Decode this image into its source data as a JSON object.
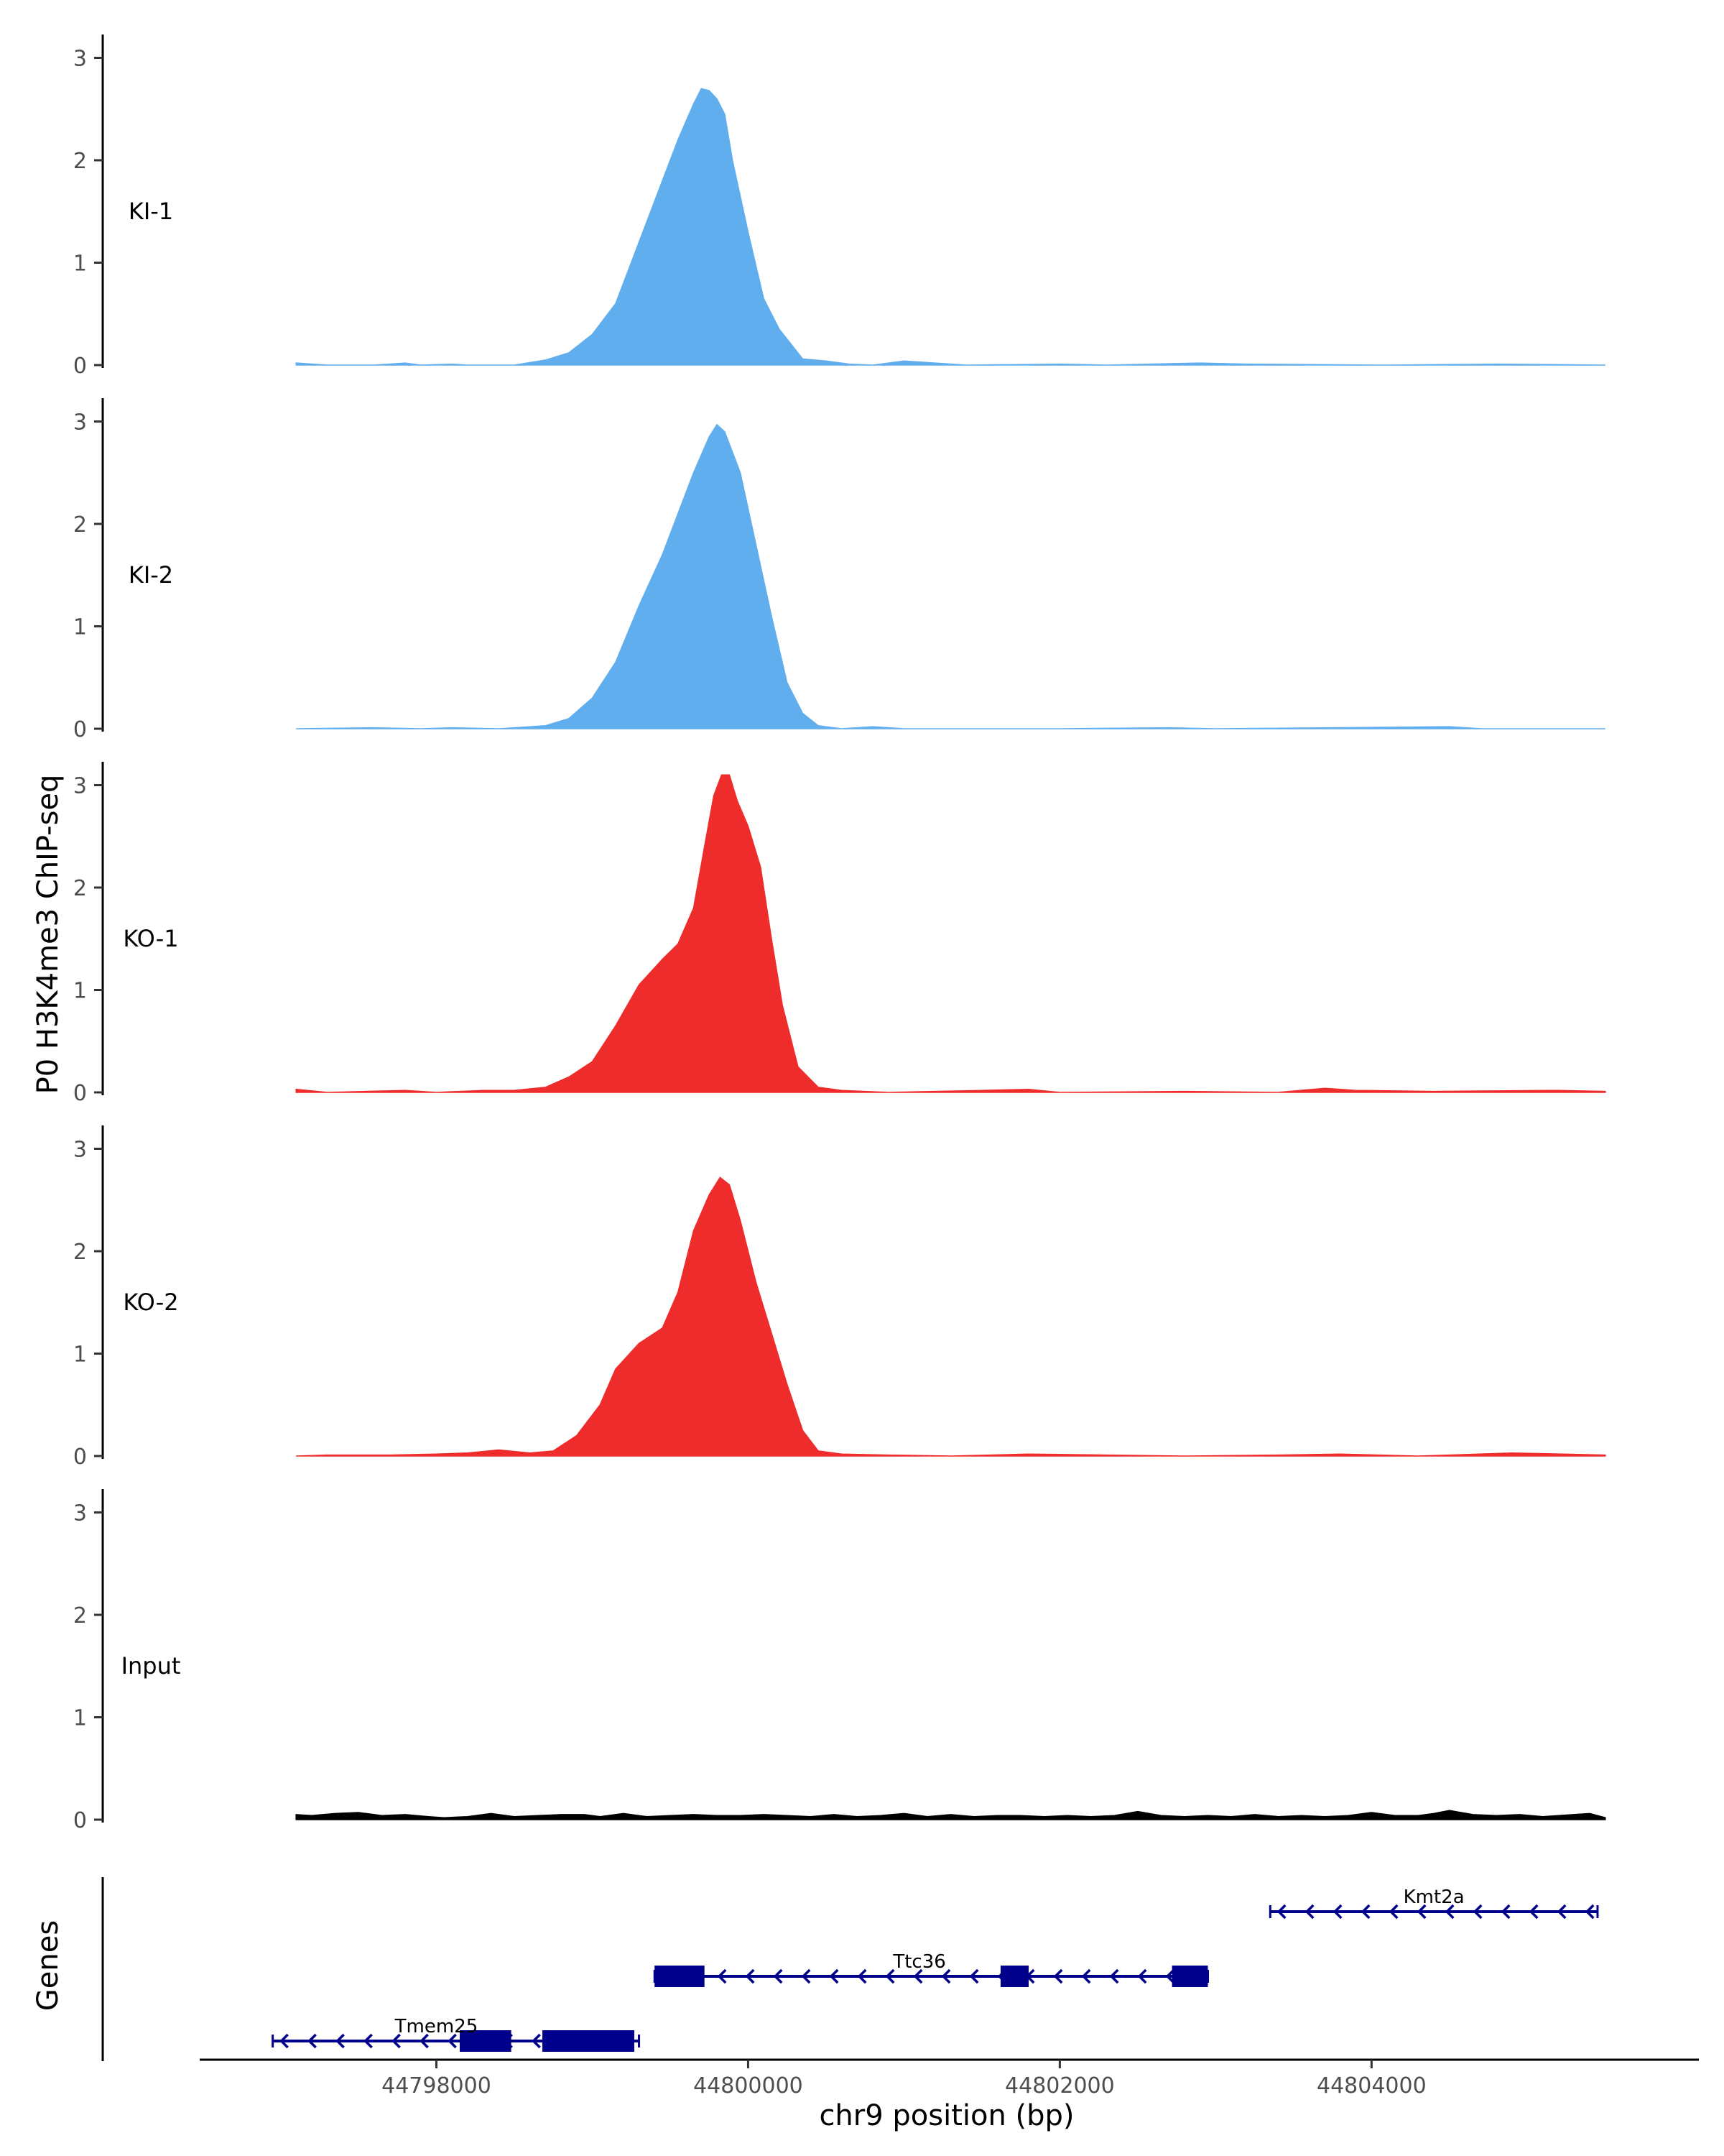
{
  "chart_data": {
    "type": "area",
    "ylabel": "P0 H3K4me3 ChIP-seq",
    "xlabel": "chr9 position (bp)",
    "ylim": [
      0,
      3.2
    ],
    "yticks": [
      0,
      1,
      2,
      3
    ],
    "xlim": [
      44796500,
      44806100
    ],
    "xticks": [
      44798000,
      44800000,
      44802000,
      44804000
    ],
    "grid": false,
    "x_start": 44797100,
    "x_end": 44805500,
    "tracks": [
      {
        "label": "KI-1",
        "color": "#61AEEE",
        "profile": [
          [
            44797100,
            0.02
          ],
          [
            44797300,
            0.0
          ],
          [
            44797500,
            0.0
          ],
          [
            44797600,
            0.0
          ],
          [
            44797800,
            0.02
          ],
          [
            44797900,
            0.0
          ],
          [
            44798100,
            0.01
          ],
          [
            44798200,
            0.0
          ],
          [
            44798500,
            0.0
          ],
          [
            44798700,
            0.05
          ],
          [
            44798850,
            0.12
          ],
          [
            44799000,
            0.3
          ],
          [
            44799150,
            0.6
          ],
          [
            44799250,
            1.0
          ],
          [
            44799400,
            1.6
          ],
          [
            44799550,
            2.2
          ],
          [
            44799650,
            2.55
          ],
          [
            44799700,
            2.7
          ],
          [
            44799750,
            2.68
          ],
          [
            44799800,
            2.6
          ],
          [
            44799850,
            2.45
          ],
          [
            44799900,
            2.0
          ],
          [
            44800000,
            1.3
          ],
          [
            44800100,
            0.65
          ],
          [
            44800200,
            0.35
          ],
          [
            44800350,
            0.06
          ],
          [
            44800500,
            0.04
          ],
          [
            44800650,
            0.01
          ],
          [
            44800800,
            0.0
          ],
          [
            44801000,
            0.04
          ],
          [
            44801200,
            0.02
          ],
          [
            44801400,
            0.0
          ],
          [
            44802000,
            0.01
          ],
          [
            44802300,
            0.0
          ],
          [
            44802900,
            0.02
          ],
          [
            44803200,
            0.01
          ],
          [
            44804100,
            0.0
          ],
          [
            44804800,
            0.01
          ],
          [
            44805500,
            0.0
          ]
        ]
      },
      {
        "label": "KI-2",
        "color": "#61AEEE",
        "profile": [
          [
            44797100,
            0.0
          ],
          [
            44797600,
            0.01
          ],
          [
            44797900,
            0.0
          ],
          [
            44798100,
            0.01
          ],
          [
            44798400,
            0.0
          ],
          [
            44798700,
            0.03
          ],
          [
            44798850,
            0.1
          ],
          [
            44799000,
            0.3
          ],
          [
            44799150,
            0.65
          ],
          [
            44799300,
            1.2
          ],
          [
            44799450,
            1.7
          ],
          [
            44799550,
            2.1
          ],
          [
            44799650,
            2.5
          ],
          [
            44799750,
            2.85
          ],
          [
            44799800,
            2.97
          ],
          [
            44799850,
            2.9
          ],
          [
            44799950,
            2.5
          ],
          [
            44800050,
            1.8
          ],
          [
            44800150,
            1.1
          ],
          [
            44800250,
            0.45
          ],
          [
            44800350,
            0.15
          ],
          [
            44800450,
            0.03
          ],
          [
            44800600,
            0.0
          ],
          [
            44800800,
            0.02
          ],
          [
            44801000,
            0.0
          ],
          [
            44801400,
            0.0
          ],
          [
            44802000,
            0.0
          ],
          [
            44802700,
            0.01
          ],
          [
            44803000,
            0.0
          ],
          [
            44804500,
            0.02
          ],
          [
            44804700,
            0.0
          ],
          [
            44805500,
            0.0
          ]
        ]
      },
      {
        "label": "KO-1",
        "color": "#EE2C2C",
        "profile": [
          [
            44797100,
            0.03
          ],
          [
            44797300,
            0.0
          ],
          [
            44797800,
            0.02
          ],
          [
            44798000,
            0.0
          ],
          [
            44798300,
            0.02
          ],
          [
            44798500,
            0.02
          ],
          [
            44798700,
            0.05
          ],
          [
            44798850,
            0.15
          ],
          [
            44799000,
            0.3
          ],
          [
            44799150,
            0.65
          ],
          [
            44799300,
            1.05
          ],
          [
            44799450,
            1.3
          ],
          [
            44799550,
            1.45
          ],
          [
            44799650,
            1.8
          ],
          [
            44799720,
            2.4
          ],
          [
            44799780,
            2.9
          ],
          [
            44799830,
            3.1
          ],
          [
            44799880,
            3.1
          ],
          [
            44799930,
            2.85
          ],
          [
            44800000,
            2.6
          ],
          [
            44800080,
            2.2
          ],
          [
            44800150,
            1.5
          ],
          [
            44800220,
            0.85
          ],
          [
            44800320,
            0.25
          ],
          [
            44800450,
            0.05
          ],
          [
            44800600,
            0.02
          ],
          [
            44800900,
            0.0
          ],
          [
            44801200,
            0.01
          ],
          [
            44801500,
            0.02
          ],
          [
            44801800,
            0.03
          ],
          [
            44802000,
            0.0
          ],
          [
            44802800,
            0.01
          ],
          [
            44803400,
            0.0
          ],
          [
            44803700,
            0.04
          ],
          [
            44803900,
            0.02
          ],
          [
            44804400,
            0.01
          ],
          [
            44805200,
            0.02
          ],
          [
            44805500,
            0.01
          ]
        ]
      },
      {
        "label": "KO-2",
        "color": "#EE2C2C",
        "profile": [
          [
            44797100,
            0.0
          ],
          [
            44797300,
            0.01
          ],
          [
            44797700,
            0.01
          ],
          [
            44798000,
            0.02
          ],
          [
            44798200,
            0.03
          ],
          [
            44798400,
            0.06
          ],
          [
            44798600,
            0.03
          ],
          [
            44798750,
            0.05
          ],
          [
            44798900,
            0.2
          ],
          [
            44799050,
            0.5
          ],
          [
            44799150,
            0.85
          ],
          [
            44799300,
            1.1
          ],
          [
            44799450,
            1.25
          ],
          [
            44799550,
            1.6
          ],
          [
            44799650,
            2.2
          ],
          [
            44799750,
            2.55
          ],
          [
            44799820,
            2.72
          ],
          [
            44799880,
            2.65
          ],
          [
            44799950,
            2.3
          ],
          [
            44800050,
            1.7
          ],
          [
            44800150,
            1.2
          ],
          [
            44800250,
            0.7
          ],
          [
            44800350,
            0.25
          ],
          [
            44800450,
            0.05
          ],
          [
            44800600,
            0.02
          ],
          [
            44800900,
            0.01
          ],
          [
            44801300,
            0.0
          ],
          [
            44801800,
            0.02
          ],
          [
            44802300,
            0.01
          ],
          [
            44802800,
            0.0
          ],
          [
            44803400,
            0.01
          ],
          [
            44803800,
            0.02
          ],
          [
            44804300,
            0.0
          ],
          [
            44804900,
            0.03
          ],
          [
            44805500,
            0.01
          ]
        ]
      },
      {
        "label": "Input",
        "color": "#000000",
        "profile": [
          [
            44797100,
            0.05
          ],
          [
            44797200,
            0.04
          ],
          [
            44797350,
            0.06
          ],
          [
            44797500,
            0.07
          ],
          [
            44797650,
            0.04
          ],
          [
            44797800,
            0.05
          ],
          [
            44797950,
            0.03
          ],
          [
            44798050,
            0.02
          ],
          [
            44798200,
            0.03
          ],
          [
            44798350,
            0.06
          ],
          [
            44798500,
            0.03
          ],
          [
            44798650,
            0.04
          ],
          [
            44798800,
            0.05
          ],
          [
            44798950,
            0.05
          ],
          [
            44799050,
            0.03
          ],
          [
            44799200,
            0.06
          ],
          [
            44799350,
            0.03
          ],
          [
            44799500,
            0.04
          ],
          [
            44799650,
            0.05
          ],
          [
            44799800,
            0.04
          ],
          [
            44799950,
            0.04
          ],
          [
            44800100,
            0.05
          ],
          [
            44800250,
            0.04
          ],
          [
            44800400,
            0.03
          ],
          [
            44800550,
            0.05
          ],
          [
            44800700,
            0.03
          ],
          [
            44800850,
            0.04
          ],
          [
            44801000,
            0.06
          ],
          [
            44801150,
            0.03
          ],
          [
            44801300,
            0.05
          ],
          [
            44801450,
            0.03
          ],
          [
            44801600,
            0.04
          ],
          [
            44801750,
            0.04
          ],
          [
            44801900,
            0.03
          ],
          [
            44802050,
            0.04
          ],
          [
            44802200,
            0.03
          ],
          [
            44802350,
            0.04
          ],
          [
            44802500,
            0.08
          ],
          [
            44802650,
            0.04
          ],
          [
            44802800,
            0.03
          ],
          [
            44802950,
            0.04
          ],
          [
            44803100,
            0.03
          ],
          [
            44803250,
            0.05
          ],
          [
            44803400,
            0.03
          ],
          [
            44803550,
            0.04
          ],
          [
            44803700,
            0.03
          ],
          [
            44803850,
            0.04
          ],
          [
            44804000,
            0.07
          ],
          [
            44804150,
            0.04
          ],
          [
            44804300,
            0.04
          ],
          [
            44804400,
            0.06
          ],
          [
            44804500,
            0.09
          ],
          [
            44804650,
            0.05
          ],
          [
            44804800,
            0.04
          ],
          [
            44804950,
            0.05
          ],
          [
            44805100,
            0.03
          ],
          [
            44805200,
            0.04
          ],
          [
            44805400,
            0.06
          ],
          [
            44805500,
            0.02
          ]
        ]
      }
    ],
    "genes_label": "Genes",
    "genes": [
      {
        "name": "Kmt2a",
        "row": 0,
        "strand": "-",
        "start": 44803350,
        "end": 44805450,
        "exons": [],
        "label_at": 44804400
      },
      {
        "name": "Ttc36",
        "row": 1,
        "strand": "-",
        "start": 44799400,
        "end": 44802950,
        "exons": [
          [
            44799400,
            44799720
          ],
          [
            44801620,
            44801800
          ],
          [
            44802720,
            44802950
          ]
        ],
        "label_at": 44801100
      },
      {
        "name": "Tmem25",
        "row": 2,
        "strand": "-",
        "start": 44796950,
        "end": 44799300,
        "exons": [
          [
            44798150,
            44798480
          ],
          [
            44798680,
            44799270
          ]
        ],
        "label_at": 44798000
      }
    ],
    "gene_color": "#00008B"
  }
}
